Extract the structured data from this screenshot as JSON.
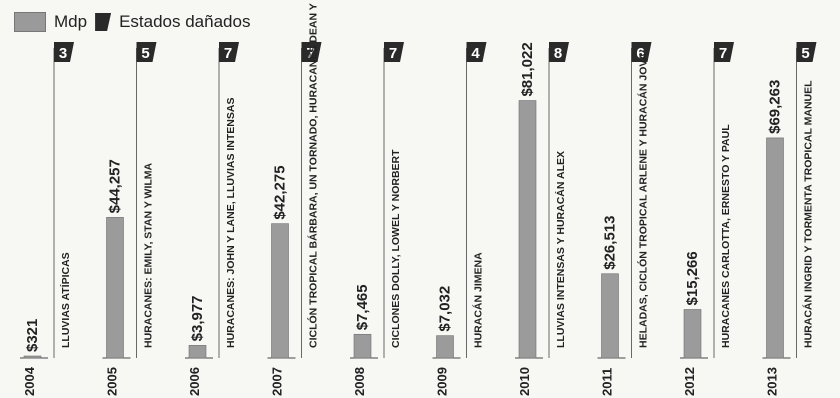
{
  "legend": {
    "mdp_label": "Mdp",
    "states_label": "Estados dañados"
  },
  "colors": {
    "bar": "#9b9b9b",
    "bar_stroke": "#6f6f6f",
    "flag": "#2a2a2a",
    "line": "#444444"
  },
  "chart_data": {
    "type": "bar",
    "categories": [
      "2004",
      "2005",
      "2006",
      "2007",
      "2008",
      "2009",
      "2010",
      "2011",
      "2012",
      "2013"
    ],
    "series": [
      {
        "name": "Mdp",
        "values": [
          321,
          44257,
          3977,
          42275,
          7465,
          7032,
          81022,
          26513,
          15266,
          69263
        ]
      },
      {
        "name": "Estados dañados",
        "values": [
          3,
          5,
          7,
          7,
          7,
          4,
          8,
          6,
          7,
          5
        ]
      }
    ],
    "value_labels": [
      "$321",
      "$44,257",
      "$3,977",
      "$42,275",
      "$7,465",
      "$7,032",
      "$81,022",
      "$26,513",
      "$15,266",
      "$69,263"
    ],
    "descriptions": [
      "LLUVIAS ATÍPICAS",
      "HURACANES: EMILY, STAN Y WILMA",
      "HURACANES: JOHN Y LANE, LLUVIAS INTENSAS",
      "CICLÓN TROPICAL BÁRBARA, UN TORNADO, HURACANES DEAN Y HENRIETTE",
      "CICLONES DOLLY, LOWEL Y NORBERT",
      "HURACÁN JIMENA",
      "LLUVIAS INTENSAS Y HURACÁN ALEX",
      "HELADAS, CICLÓN TROPICAL ARLENE Y HURACÁN JOVA",
      "HURACANES CARLOTTA, ERNESTO Y PAUL",
      "HURACÁN INGRID Y TORMENTA TROPICAL MANUEL"
    ],
    "ylim": [
      0,
      90000
    ],
    "legend_position": "top-left",
    "grid": false
  }
}
